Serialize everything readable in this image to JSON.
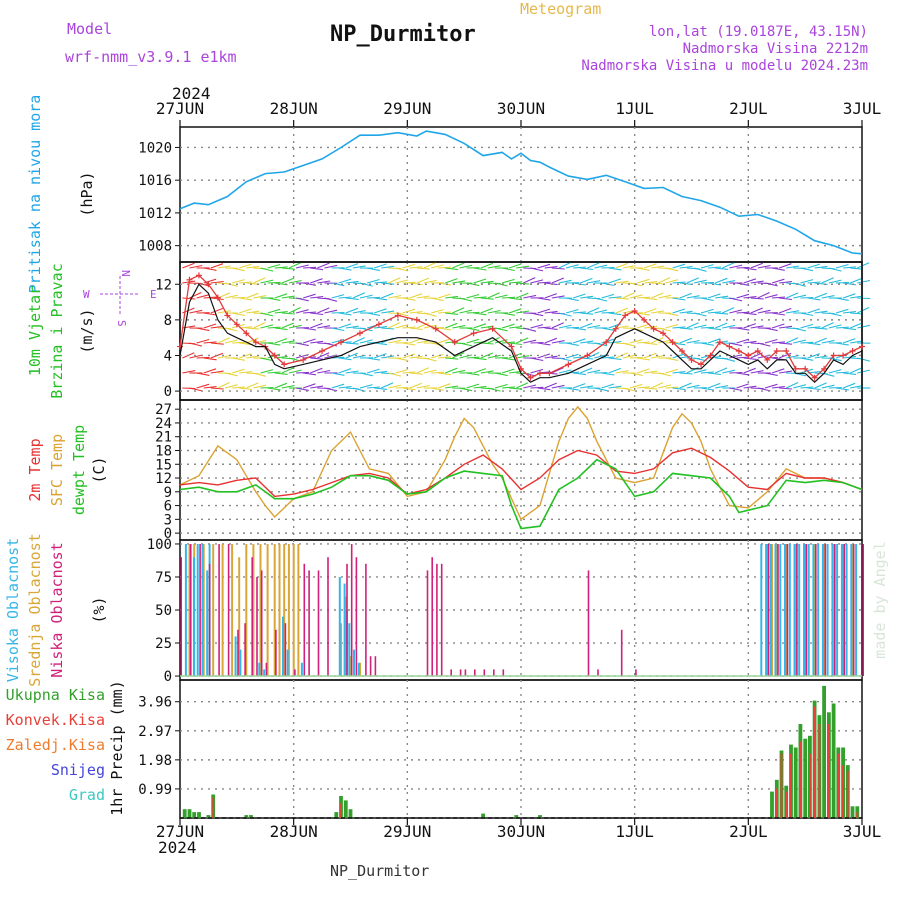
{
  "header": {
    "model_label": "Model",
    "model_name": "wrf-nmm_v3.9.1  e1km",
    "meteogram_label": "Meteogram",
    "station_title": "NP_Durmitor",
    "coords": "lon,lat (19.0187E, 43.15N)",
    "elevation": "Nadmorska Visina 2212m",
    "model_elevation": "Nadmorska Visina u modelu 2024.23m",
    "year": "2024",
    "footer_station": "NP_Durmitor",
    "watermark": "made by Angel"
  },
  "colors": {
    "pressure": "#1fa6e8",
    "wind_speed": "#111111",
    "wind_gust": "#e23a3a",
    "t2m": "#e83030",
    "tsfc": "#dba232",
    "dewpoint": "#22c022",
    "cloud_high": "#35b6e8",
    "cloud_mid": "#d9a637",
    "cloud_low": "#d0207a",
    "precip_total": "#33a02c",
    "precip_conv": "#e8403a",
    "precip_frozen": "#ef7c2e",
    "snow": "#4444dd",
    "graupel": "#3cc8c0",
    "header_purple": "#aa44dd",
    "header_gold": "#e6b84a"
  },
  "chart_data": [
    {
      "type": "line",
      "panel": "pressure",
      "ylabel_outer": "Pritisak na nivou mora",
      "ylabel_unit": "(hPa)",
      "x_ticks": [
        "27JUN",
        "28JUN",
        "29JUN",
        "30JUN",
        "1JUL",
        "2JUL",
        "3JUL"
      ],
      "x_range_hours": [
        0,
        144
      ],
      "y_ticks": [
        1008,
        1012,
        1016,
        1020
      ],
      "ylim": [
        1006,
        1022.5
      ],
      "grid": true,
      "series": [
        {
          "name": "Pritisak na nivou mora",
          "x": [
            0,
            3,
            6,
            10,
            14,
            18,
            22,
            26,
            30,
            34,
            38,
            42,
            46,
            50,
            52,
            56,
            60,
            64,
            68,
            70,
            72,
            74,
            76,
            78,
            82,
            86,
            90,
            94,
            98,
            102,
            106,
            110,
            114,
            118,
            122,
            126,
            130,
            134,
            138,
            142,
            144
          ],
          "y": [
            1012.5,
            1013.2,
            1013.0,
            1014.0,
            1015.8,
            1016.8,
            1017.0,
            1017.8,
            1018.6,
            1020.0,
            1021.5,
            1021.5,
            1021.8,
            1021.4,
            1022.0,
            1021.6,
            1020.5,
            1019.0,
            1019.4,
            1018.6,
            1019.3,
            1018.4,
            1018.2,
            1017.6,
            1016.5,
            1016.1,
            1016.6,
            1015.8,
            1015.0,
            1015.1,
            1014.0,
            1013.5,
            1012.7,
            1011.6,
            1011.8,
            1011.0,
            1010.0,
            1008.6,
            1008.0,
            1007.1,
            1007.0
          ]
        }
      ]
    },
    {
      "type": "line",
      "panel": "wind",
      "ylabel_outer_1": "10m Vjetar",
      "ylabel_outer_2": "Brzina i Pravac",
      "ylabel_unit": "(m/s)",
      "compass_n": "N",
      "compass_s": "S",
      "compass_e": "E",
      "compass_w": "W",
      "y_ticks": [
        0,
        4,
        8,
        12
      ],
      "ylim": [
        -1,
        14.5
      ],
      "grid": true,
      "series": [
        {
          "name": "speed",
          "x": [
            0,
            2,
            4,
            6,
            8,
            10,
            12,
            14,
            16,
            18,
            20,
            22,
            26,
            30,
            34,
            38,
            42,
            46,
            50,
            54,
            58,
            62,
            66,
            70,
            72,
            74,
            76,
            78,
            82,
            86,
            90,
            92,
            94,
            96,
            98,
            100,
            102,
            104,
            106,
            108,
            110,
            112,
            114,
            116,
            118,
            120,
            122,
            124,
            126,
            128,
            130,
            132,
            134,
            136,
            138,
            140,
            142,
            144
          ],
          "y": [
            4.0,
            10.0,
            12.0,
            11.0,
            8.0,
            6.5,
            6.0,
            5.5,
            5.0,
            5.0,
            3.0,
            2.5,
            3.0,
            3.5,
            4.0,
            5.0,
            5.5,
            6.0,
            6.0,
            5.5,
            4.0,
            5.0,
            6.0,
            4.5,
            2.0,
            1.0,
            1.5,
            1.5,
            2.0,
            3.0,
            4.0,
            6.0,
            6.5,
            7.0,
            6.5,
            6.0,
            5.5,
            4.5,
            3.5,
            2.5,
            2.5,
            3.5,
            4.5,
            4.0,
            3.5,
            3.0,
            3.5,
            2.5,
            3.5,
            3.5,
            2.0,
            2.0,
            1.0,
            2.0,
            3.5,
            3.0,
            4.0,
            4.5
          ]
        },
        {
          "name": "gust",
          "x": [
            0,
            2,
            4,
            6,
            8,
            10,
            12,
            14,
            16,
            18,
            20,
            22,
            26,
            30,
            34,
            38,
            42,
            46,
            50,
            54,
            58,
            62,
            66,
            70,
            72,
            74,
            76,
            78,
            82,
            86,
            90,
            92,
            94,
            96,
            98,
            100,
            102,
            104,
            106,
            108,
            110,
            112,
            114,
            116,
            118,
            120,
            122,
            124,
            126,
            128,
            130,
            132,
            134,
            136,
            138,
            140,
            142,
            144
          ],
          "y": [
            5.0,
            12.5,
            13.0,
            12.0,
            10.5,
            8.5,
            7.5,
            6.5,
            5.5,
            5.0,
            4.0,
            3.0,
            3.5,
            4.5,
            5.5,
            6.5,
            7.5,
            8.5,
            8.0,
            7.0,
            5.5,
            6.5,
            7.0,
            5.0,
            2.5,
            1.5,
            2.0,
            2.0,
            3.0,
            4.0,
            5.5,
            7.0,
            8.5,
            9.0,
            8.0,
            7.0,
            6.5,
            5.5,
            4.5,
            3.5,
            3.0,
            4.0,
            5.5,
            5.0,
            4.5,
            4.0,
            4.5,
            3.5,
            4.5,
            4.5,
            2.5,
            2.5,
            1.5,
            2.5,
            4.0,
            4.0,
            4.5,
            5.0
          ]
        }
      ]
    },
    {
      "type": "line",
      "panel": "temperature",
      "ylabel_outer_1": "2m Temp",
      "ylabel_outer_2": "SFC Temp",
      "ylabel_outer_3": "dewpt Temp",
      "ylabel_unit": "(C)",
      "y_ticks": [
        0,
        3,
        6,
        9,
        12,
        15,
        18,
        21,
        24,
        27
      ],
      "ylim": [
        -1.5,
        29
      ],
      "grid": true,
      "series": [
        {
          "name": "2m Temp",
          "x": [
            0,
            4,
            8,
            12,
            16,
            20,
            24,
            28,
            32,
            36,
            40,
            44,
            48,
            52,
            56,
            60,
            64,
            68,
            72,
            76,
            80,
            84,
            88,
            92,
            96,
            100,
            104,
            108,
            112,
            116,
            120,
            124,
            128,
            132,
            136,
            140,
            144
          ],
          "y": [
            10.5,
            11.0,
            10.5,
            11.5,
            12.0,
            8.0,
            8.5,
            9.5,
            11.0,
            12.5,
            13.0,
            12.0,
            8.5,
            9.5,
            12.0,
            15.0,
            17.0,
            14.0,
            9.5,
            12.0,
            16.0,
            18.0,
            17.0,
            13.5,
            13.0,
            14.0,
            17.5,
            18.5,
            16.5,
            13.5,
            10.0,
            9.5,
            13.0,
            12.0,
            12.0,
            11.0,
            9.5
          ]
        },
        {
          "name": "SFC Temp",
          "x": [
            0,
            4,
            8,
            12,
            16,
            18,
            20,
            22,
            24,
            28,
            32,
            36,
            40,
            44,
            48,
            52,
            56,
            58,
            60,
            62,
            64,
            66,
            68,
            72,
            76,
            80,
            82,
            84,
            86,
            88,
            92,
            96,
            100,
            104,
            106,
            108,
            110,
            112,
            116,
            120,
            124,
            128,
            132,
            136,
            140,
            144
          ],
          "y": [
            10.5,
            12.5,
            19.0,
            16.0,
            9.0,
            6.0,
            3.5,
            5.5,
            7.5,
            9.0,
            18.0,
            22.0,
            14.0,
            13.0,
            8.0,
            9.0,
            16.0,
            21.0,
            25.0,
            23.0,
            19.0,
            15.0,
            12.0,
            3.0,
            6.0,
            20.0,
            25.0,
            27.5,
            25.0,
            20.0,
            12.0,
            11.0,
            12.0,
            23.0,
            26.0,
            24.0,
            20.0,
            14.0,
            6.0,
            5.5,
            9.0,
            14.0,
            12.0,
            12.0,
            11.0,
            9.5
          ]
        },
        {
          "name": "dewpt Temp",
          "x": [
            0,
            4,
            8,
            12,
            16,
            20,
            24,
            28,
            32,
            36,
            40,
            44,
            48,
            52,
            56,
            60,
            64,
            68,
            70,
            72,
            76,
            80,
            84,
            88,
            92,
            96,
            100,
            104,
            108,
            112,
            116,
            118,
            120,
            124,
            128,
            132,
            136,
            140,
            144
          ],
          "y": [
            9.5,
            10.0,
            9.0,
            9.0,
            10.5,
            7.5,
            7.5,
            8.5,
            10.0,
            12.5,
            12.5,
            11.5,
            8.5,
            9.0,
            12.0,
            13.5,
            13.0,
            12.5,
            6.0,
            1.0,
            1.5,
            9.5,
            12.0,
            16.0,
            14.0,
            8.0,
            9.0,
            13.0,
            12.5,
            12.0,
            8.0,
            4.5,
            5.0,
            6.0,
            11.5,
            11.0,
            11.5,
            11.0,
            9.5
          ]
        }
      ]
    },
    {
      "type": "bar",
      "panel": "clouds",
      "ylabel_outer_1": "Visoka Oblacnost",
      "ylabel_outer_2": "Srednja Oblacnost",
      "ylabel_outer_3": "Niska Oblacnost",
      "ylabel_unit": "(%)",
      "y_ticks": [
        0,
        25,
        50,
        75,
        100
      ],
      "ylim": [
        -3,
        103
      ],
      "grid": true,
      "series": [
        {
          "name": "Visoka Oblacnost",
          "x": [
            1.5,
            2.5,
            3.2,
            4.0,
            5.0,
            6.0,
            6.5,
            12,
            13,
            17,
            18,
            22,
            23,
            26,
            34,
            35,
            35.5,
            36,
            37,
            38,
            123,
            124,
            125,
            126,
            127,
            128,
            129,
            130,
            131,
            132,
            133,
            134,
            135,
            136,
            137,
            138,
            139,
            140,
            141,
            142,
            143
          ],
          "y": [
            100,
            100,
            90,
            100,
            100,
            80,
            100,
            30,
            20,
            10,
            5,
            45,
            20,
            10,
            75,
            70,
            50,
            40,
            20,
            10,
            100,
            100,
            100,
            100,
            100,
            100,
            100,
            100,
            100,
            100,
            100,
            100,
            100,
            100,
            100,
            100,
            100,
            100,
            100,
            100,
            100
          ]
        },
        {
          "name": "Srednja Oblacnost",
          "x": [
            2,
            3,
            5,
            7,
            9,
            11,
            12.5,
            14,
            15.5,
            17,
            18.5,
            20,
            21,
            22,
            23,
            24,
            25,
            34,
            35,
            36,
            38,
            124,
            125,
            126,
            128,
            130,
            132,
            134,
            136,
            138,
            140,
            142
          ],
          "y": [
            100,
            100,
            100,
            100,
            100,
            100,
            90,
            100,
            100,
            100,
            100,
            100,
            100,
            100,
            100,
            100,
            100,
            40,
            60,
            15,
            10,
            100,
            100,
            100,
            100,
            100,
            100,
            100,
            100,
            100,
            100,
            100
          ]
        },
        {
          "name": "Niska Oblacnost",
          "x": [
            0,
            2,
            4,
            6,
            8,
            10,
            12,
            13.5,
            15,
            16,
            17,
            18,
            20,
            22,
            24,
            26,
            27,
            29,
            31,
            35,
            36,
            37,
            39,
            40,
            41,
            52,
            53,
            54,
            55,
            57,
            59,
            60,
            62,
            64,
            66,
            68,
            86,
            88,
            93,
            96,
            124,
            126,
            128,
            130,
            132,
            134,
            136,
            138,
            140,
            142,
            144
          ],
          "y": [
            90,
            100,
            100,
            85,
            100,
            100,
            35,
            40,
            90,
            75,
            80,
            10,
            35,
            40,
            5,
            85,
            80,
            80,
            90,
            85,
            100,
            90,
            85,
            15,
            15,
            80,
            90,
            85,
            85,
            5,
            5,
            5,
            5,
            5,
            5,
            5,
            80,
            5,
            35,
            5,
            100,
            100,
            100,
            100,
            100,
            100,
            100,
            100,
            100,
            100,
            100
          ]
        }
      ]
    },
    {
      "type": "bar",
      "panel": "precip",
      "ylabel_unit": "1hr Precip (mm)",
      "legend_total": "Ukupna Kisa",
      "legend_conv": "Konvek.Kisa",
      "legend_frozen": "Zaledj.Kisa",
      "legend_snow": "Snijeg",
      "legend_graupel": "Grad",
      "y_ticks": [
        0.99,
        1.98,
        2.97,
        3.96
      ],
      "ylim": [
        0,
        4.7
      ],
      "grid": true,
      "series": [
        {
          "name": "Ukupna Kisa",
          "x": [
            1,
            2,
            3,
            4,
            6,
            7,
            14,
            15,
            33,
            34,
            35,
            36,
            64,
            71,
            76,
            125,
            126,
            127,
            128,
            129,
            130,
            131,
            132,
            133,
            134,
            135,
            136,
            137,
            138,
            139,
            140,
            141,
            142,
            143
          ],
          "y": [
            0.3,
            0.3,
            0.2,
            0.2,
            0.1,
            0.8,
            0.1,
            0.1,
            0.2,
            0.75,
            0.6,
            0.3,
            0.15,
            0.1,
            0.1,
            0.9,
            1.3,
            2.3,
            1.1,
            2.5,
            2.4,
            3.2,
            2.7,
            2.8,
            4.0,
            3.5,
            4.5,
            3.6,
            3.9,
            2.4,
            2.4,
            1.8,
            0.4,
            0.4
          ]
        },
        {
          "name": "Konvek.Kisa",
          "x": [
            7,
            34,
            126,
            127,
            128,
            129,
            131,
            133,
            134,
            135,
            137,
            139,
            140,
            141,
            143
          ],
          "y": [
            0.7,
            0.5,
            1.0,
            2.2,
            0.9,
            2.2,
            2.6,
            2.2,
            3.8,
            3.2,
            3.2,
            2.2,
            1.8,
            1.6,
            0.2
          ]
        }
      ]
    }
  ]
}
